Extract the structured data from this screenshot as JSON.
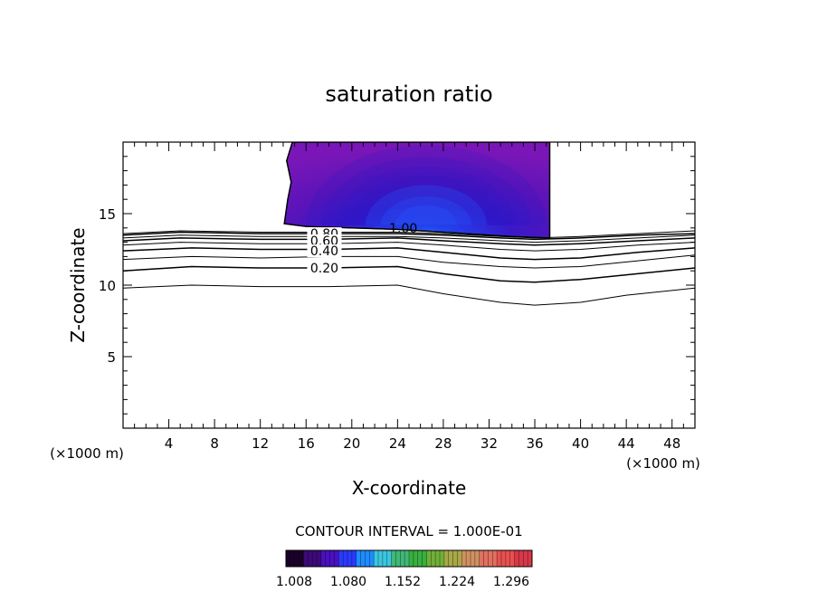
{
  "chart_data": {
    "type": "contour",
    "title": "saturation ratio",
    "xlabel": "X-coordinate",
    "ylabel": "Z-coordinate",
    "x_unit_left": "(×1000 m)",
    "x_unit_right": "(×1000 m)",
    "xlim": [
      0,
      50
    ],
    "ylim": [
      0,
      20
    ],
    "x_ticks": [
      4,
      8,
      12,
      16,
      20,
      24,
      28,
      32,
      36,
      40,
      44,
      48
    ],
    "y_ticks": [
      5,
      10,
      15
    ],
    "contour_interval_text": "CONTOUR INTERVAL = 1.000E-01",
    "contour_labels": [
      {
        "text": "1.00",
        "x": 24.5,
        "z": 14.0
      },
      {
        "text": "0.80",
        "x": 17.6,
        "z": 13.6
      },
      {
        "text": "0.60",
        "x": 17.6,
        "z": 13.1
      },
      {
        "text": "0.40",
        "x": 17.6,
        "z": 12.4
      },
      {
        "text": "0.20",
        "x": 17.6,
        "z": 11.2
      }
    ],
    "contour_lines": [
      {
        "level": 0.1,
        "points": [
          [
            0,
            9.8
          ],
          [
            6,
            10.0
          ],
          [
            12,
            9.9
          ],
          [
            18,
            9.9
          ],
          [
            24,
            10.0
          ],
          [
            28,
            9.4
          ],
          [
            33,
            8.8
          ],
          [
            36,
            8.6
          ],
          [
            40,
            8.8
          ],
          [
            44,
            9.3
          ],
          [
            50,
            9.8
          ]
        ]
      },
      {
        "level": 0.2,
        "points": [
          [
            0,
            11.0
          ],
          [
            6,
            11.3
          ],
          [
            12,
            11.2
          ],
          [
            18,
            11.2
          ],
          [
            24,
            11.3
          ],
          [
            28,
            10.8
          ],
          [
            33,
            10.3
          ],
          [
            36,
            10.2
          ],
          [
            40,
            10.4
          ],
          [
            45,
            10.8
          ],
          [
            50,
            11.2
          ]
        ]
      },
      {
        "level": 0.3,
        "points": [
          [
            0,
            11.8
          ],
          [
            6,
            12.0
          ],
          [
            12,
            11.9
          ],
          [
            18,
            12.0
          ],
          [
            24,
            12.0
          ],
          [
            28,
            11.6
          ],
          [
            33,
            11.3
          ],
          [
            36,
            11.2
          ],
          [
            40,
            11.3
          ],
          [
            45,
            11.7
          ],
          [
            50,
            12.1
          ]
        ]
      },
      {
        "level": 0.4,
        "points": [
          [
            0,
            12.4
          ],
          [
            6,
            12.6
          ],
          [
            12,
            12.5
          ],
          [
            18,
            12.5
          ],
          [
            24,
            12.6
          ],
          [
            28,
            12.3
          ],
          [
            33,
            11.9
          ],
          [
            36,
            11.8
          ],
          [
            40,
            11.9
          ],
          [
            45,
            12.3
          ],
          [
            50,
            12.6
          ]
        ]
      },
      {
        "level": 0.5,
        "points": [
          [
            0,
            12.8
          ],
          [
            5,
            13.0
          ],
          [
            12,
            12.9
          ],
          [
            18,
            12.9
          ],
          [
            24,
            13.0
          ],
          [
            28,
            12.8
          ],
          [
            33,
            12.5
          ],
          [
            36,
            12.4
          ],
          [
            40,
            12.5
          ],
          [
            45,
            12.8
          ],
          [
            50,
            13.0
          ]
        ]
      },
      {
        "level": 0.6,
        "points": [
          [
            0,
            13.1
          ],
          [
            5,
            13.3
          ],
          [
            12,
            13.2
          ],
          [
            18,
            13.2
          ],
          [
            24,
            13.3
          ],
          [
            28,
            13.1
          ],
          [
            33,
            12.9
          ],
          [
            36,
            12.8
          ],
          [
            40,
            12.9
          ],
          [
            45,
            13.1
          ],
          [
            50,
            13.3
          ]
        ]
      },
      {
        "level": 0.7,
        "points": [
          [
            0,
            13.3
          ],
          [
            5,
            13.5
          ],
          [
            12,
            13.4
          ],
          [
            18,
            13.4
          ],
          [
            24,
            13.4
          ],
          [
            28,
            13.3
          ],
          [
            33,
            13.1
          ],
          [
            36,
            13.0
          ],
          [
            40,
            13.1
          ],
          [
            45,
            13.3
          ],
          [
            50,
            13.5
          ]
        ]
      },
      {
        "level": 0.8,
        "points": [
          [
            0,
            13.5
          ],
          [
            5,
            13.7
          ],
          [
            12,
            13.6
          ],
          [
            18,
            13.6
          ],
          [
            24,
            13.6
          ],
          [
            28,
            13.5
          ],
          [
            33,
            13.3
          ],
          [
            36,
            13.2
          ],
          [
            40,
            13.3
          ],
          [
            45,
            13.5
          ],
          [
            50,
            13.6
          ]
        ]
      },
      {
        "level": 0.9,
        "points": [
          [
            0,
            13.6
          ],
          [
            5,
            13.8
          ],
          [
            12,
            13.7
          ],
          [
            18,
            13.7
          ],
          [
            24,
            13.7
          ],
          [
            28,
            13.6
          ],
          [
            33,
            13.4
          ],
          [
            36,
            13.3
          ],
          [
            40,
            13.4
          ],
          [
            45,
            13.6
          ],
          [
            50,
            13.8
          ]
        ]
      }
    ],
    "supersaturated_region": {
      "outline": [
        [
          14.8,
          20
        ],
        [
          14.3,
          18.7
        ],
        [
          14.7,
          17.2
        ],
        [
          14.4,
          16.0
        ],
        [
          14.1,
          14.3
        ],
        [
          16,
          14.1
        ],
        [
          20,
          14.0
        ],
        [
          24,
          13.9
        ],
        [
          28,
          13.7
        ],
        [
          32,
          13.5
        ],
        [
          34,
          13.4
        ],
        [
          37.3,
          13.3
        ],
        [
          37.3,
          20
        ]
      ],
      "core_center": [
        26.5,
        14.2
      ],
      "fill_levels": [
        1.008,
        1.02,
        1.04,
        1.06,
        1.08,
        1.1,
        1.12,
        1.14
      ]
    },
    "colorbar": {
      "tick_labels": [
        "1.008",
        "1.080",
        "1.152",
        "1.224",
        "1.296"
      ],
      "colors": [
        "#1a0028",
        "#3c0a78",
        "#4a10c0",
        "#2a3aff",
        "#1e8cff",
        "#3cc6e0",
        "#40b878",
        "#38b040",
        "#70b038",
        "#a8a848",
        "#d09060",
        "#e07060",
        "#e85050",
        "#d83848"
      ]
    },
    "grid": false,
    "legend": "none"
  }
}
